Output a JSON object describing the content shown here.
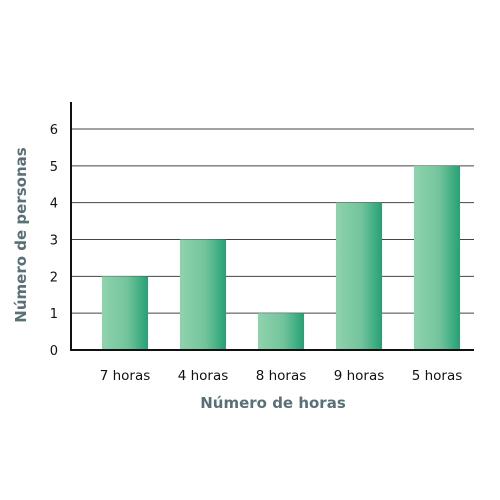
{
  "chart_data": {
    "type": "bar",
    "categories": [
      "7 horas",
      "4 horas",
      "8 horas",
      "9 horas",
      "5 horas"
    ],
    "values": [
      2,
      3,
      1,
      4,
      5
    ],
    "title": "",
    "xlabel": "Número de horas",
    "ylabel": "Número de personas",
    "ylim": [
      0,
      6
    ],
    "yticks": [
      0,
      1,
      2,
      3,
      4,
      5,
      6
    ],
    "grid": true,
    "legend": "none",
    "colors": {
      "bar_light": "#8fd3ad",
      "bar_dark": "#23a274",
      "axis": "#111111",
      "grid": "#444444",
      "axis_title": "#5a7077"
    }
  }
}
